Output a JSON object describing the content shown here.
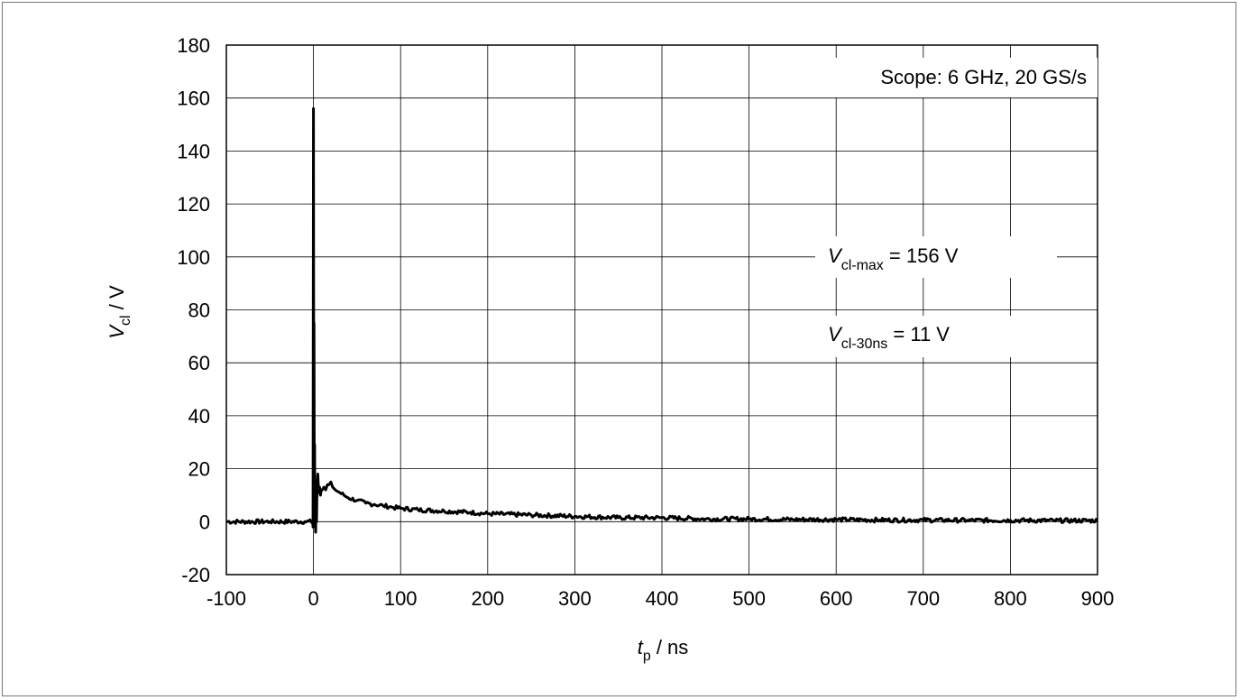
{
  "chart_data": {
    "type": "line",
    "xlabel_main": "t",
    "xlabel_sub": "p",
    "xlabel_unit": " / ns",
    "ylabel_main": "V",
    "ylabel_sub": "cl",
    "ylabel_unit": " / V",
    "xlim": [
      -100,
      900
    ],
    "ylim": [
      -20,
      180
    ],
    "x_ticks": [
      "-100",
      "0",
      "100",
      "200",
      "300",
      "400",
      "500",
      "600",
      "700",
      "800",
      "900"
    ],
    "y_ticks": [
      "-20",
      "0",
      "20",
      "40",
      "60",
      "80",
      "100",
      "120",
      "140",
      "160",
      "180"
    ],
    "grid": true,
    "line_color": "#000000",
    "annotations": {
      "scope": "Scope: 6 GHz, 20 GS/s",
      "vmax_main": "V",
      "vmax_sub": "cl-max",
      "vmax_value": " = 156 V",
      "v30_main": "V",
      "v30_sub": "cl-30ns",
      "v30_value": " = 11 V"
    },
    "series": [
      {
        "x": [
          -100,
          -50,
          -10,
          -1,
          -0.5,
          0,
          0.3,
          0.6,
          1,
          1.3,
          1.6,
          2,
          2.5,
          3,
          3.5,
          4,
          5,
          6,
          7,
          8,
          9,
          10,
          12,
          14,
          16,
          18,
          20,
          22,
          25,
          30,
          35,
          40,
          50,
          60,
          70,
          80,
          90,
          100,
          120,
          150,
          180,
          200,
          250,
          300,
          350,
          400,
          450,
          500,
          550,
          600,
          650,
          700,
          750,
          800,
          850,
          900
        ],
        "y": [
          0,
          0,
          0,
          0,
          -2,
          156,
          40,
          75,
          2,
          29,
          -1,
          14,
          -4,
          8,
          0,
          12,
          18,
          11,
          13,
          10,
          12,
          12,
          13,
          12,
          14,
          14,
          15,
          13,
          12,
          11,
          10,
          9,
          8,
          7,
          6.5,
          6,
          5.5,
          5,
          4.5,
          4,
          3.5,
          3,
          2.5,
          2,
          1.5,
          1.5,
          1,
          1,
          0.8,
          0.8,
          0.6,
          0.6,
          0.5,
          0.5,
          0.4,
          0.4
        ]
      }
    ]
  }
}
